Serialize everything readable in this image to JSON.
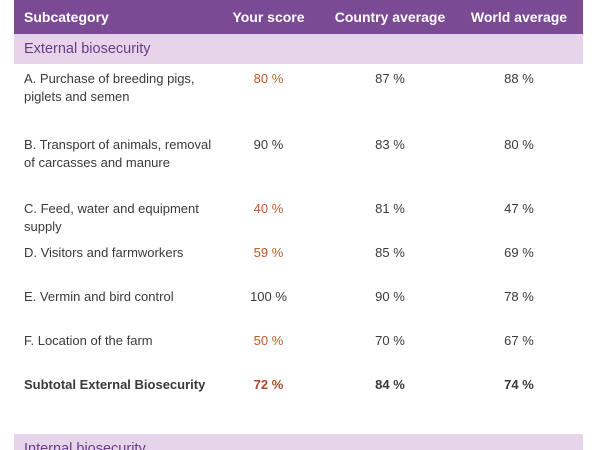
{
  "headers": {
    "subcategory": "Subcategory",
    "your_score": "Your score",
    "country_avg": "Country average",
    "world_avg": "World average"
  },
  "sections": {
    "external": "External biosecurity",
    "internal": "Internal biosecurity"
  },
  "rows": [
    {
      "label": "A. Purchase of breeding pigs, piglets and semen",
      "score": "80 %",
      "country": "87 %",
      "world": "88 %",
      "low": true
    },
    {
      "label": "B. Transport of animals, removal of carcasses and manure",
      "score": "90 %",
      "country": "83 %",
      "world": "80 %",
      "low": false
    },
    {
      "label": "C. Feed, water and equipment supply",
      "score": "40 %",
      "country": "81 %",
      "world": "47 %",
      "low": true
    },
    {
      "label": "D. Visitors and farmworkers",
      "score": "59 %",
      "country": "85 %",
      "world": "69 %",
      "low": true
    },
    {
      "label": "E. Vermin and bird control",
      "score": "100 %",
      "country": "90 %",
      "world": "78 %",
      "low": false
    },
    {
      "label": "F. Location of the farm",
      "score": "50 %",
      "country": "70 %",
      "world": "67 %",
      "low": true
    }
  ],
  "subtotal": {
    "label": "Subtotal External Biosecurity",
    "score": "72 %",
    "country": "84 %",
    "world": "74 %"
  },
  "colors": {
    "header_bg": "#7a4b94",
    "section_bg": "#e6d5ea",
    "section_text": "#6b3a87",
    "below_average": "#c0592b"
  }
}
